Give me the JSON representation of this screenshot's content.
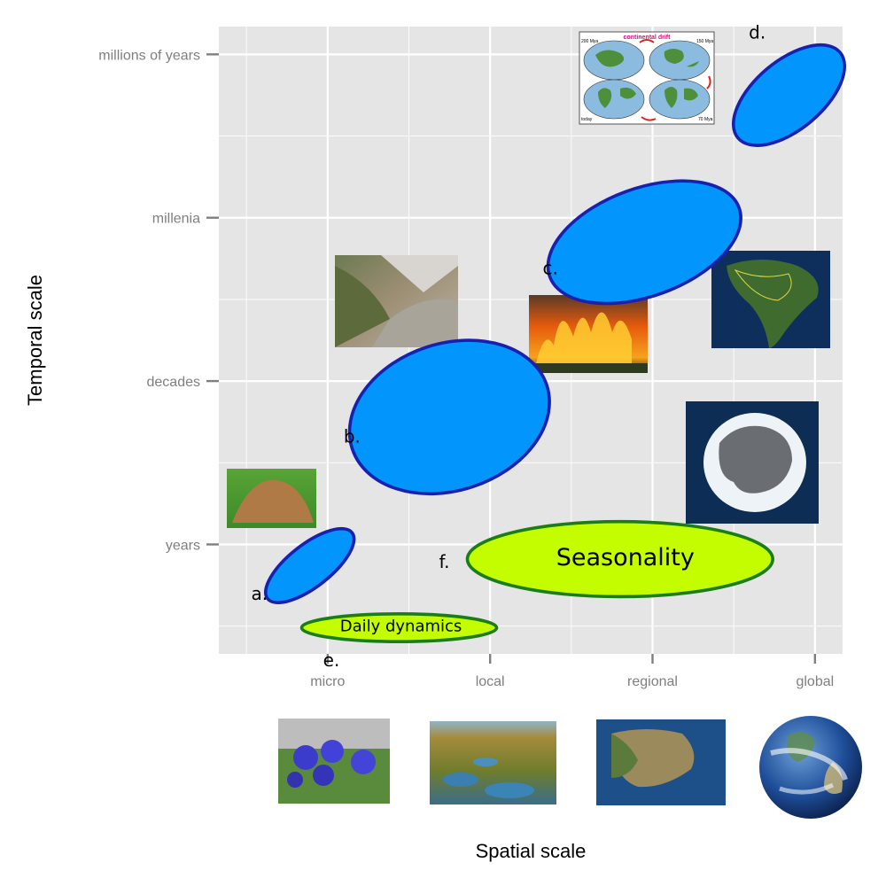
{
  "chart_data": {
    "type": "scatter",
    "xlabel": "Spatial scale",
    "ylabel": "Temporal scale",
    "x_ticks": [
      "micro",
      "local",
      "regional",
      "global"
    ],
    "y_ticks": [
      "years",
      "decades",
      "millenia",
      "millions of years"
    ],
    "xlim": [
      0.33,
      4.17
    ],
    "ylim": [
      0.33,
      4.17
    ],
    "grid": true,
    "ellipses": [
      {
        "id": "a",
        "label": "a.",
        "text": "",
        "kind": "blue",
        "cx": 0.89,
        "cy": 0.87,
        "rx": 0.33,
        "ry": 0.13,
        "angle": -38
      },
      {
        "id": "b",
        "label": "b.",
        "text": "",
        "kind": "blue",
        "cx": 1.75,
        "cy": 1.78,
        "rx": 0.63,
        "ry": 0.45,
        "angle": -18
      },
      {
        "id": "c",
        "label": "c.",
        "text": "",
        "kind": "blue",
        "cx": 2.95,
        "cy": 2.85,
        "rx": 0.62,
        "ry": 0.33,
        "angle": -20
      },
      {
        "id": "d",
        "label": "d.",
        "text": "",
        "kind": "blue",
        "cx": 3.84,
        "cy": 3.75,
        "rx": 0.41,
        "ry": 0.21,
        "angle": -40
      },
      {
        "id": "e",
        "label": "e.",
        "text": "Daily dynamics",
        "kind": "green",
        "cx": 1.44,
        "cy": 0.49,
        "rx": 0.6,
        "ry": 0.085,
        "angle": 0
      },
      {
        "id": "f",
        "label": "f.",
        "text": "Seasonality",
        "kind": "green",
        "cx": 2.8,
        "cy": 0.91,
        "rx": 0.94,
        "ry": 0.23,
        "angle": 0
      }
    ]
  },
  "images": [
    {
      "name": "continental-drift-map",
      "caption": "continental drift",
      "corner_labels": [
        "200 Mya",
        "150 Mya",
        "today",
        "70 Mya"
      ]
    },
    {
      "name": "mountain-valley-photo"
    },
    {
      "name": "forest-fire-photo"
    },
    {
      "name": "south-america-satellite-photo"
    },
    {
      "name": "antarctica-satellite-photo"
    },
    {
      "name": "ant-mound-photo"
    },
    {
      "name": "blue-gentian-flowers-photo"
    },
    {
      "name": "wetland-landscape-photo"
    },
    {
      "name": "iberia-satellite-photo"
    },
    {
      "name": "earth-globe-photo"
    }
  ],
  "colors": {
    "panel": "#e5e5e5",
    "grid": "#ffffff",
    "blue_fill": "#0295fb",
    "blue_stroke": "#1821ae",
    "green_fill": "#c3fd00",
    "green_stroke": "#1b7d17"
  }
}
